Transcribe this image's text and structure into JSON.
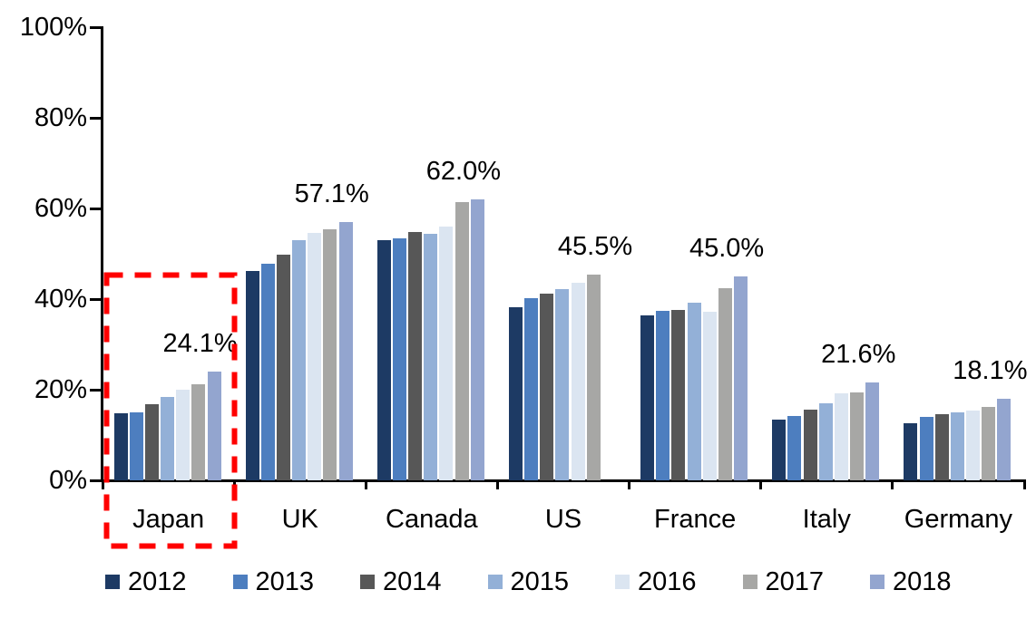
{
  "chart_data": {
    "type": "bar",
    "title": "",
    "xlabel": "",
    "ylabel": "",
    "ylim": [
      0,
      100
    ],
    "grid": false,
    "legend_position": "bottom",
    "y_tick_labels": [
      "100%",
      "80%",
      "60%",
      "40%",
      "20%",
      "0%"
    ],
    "categories": [
      "Japan",
      "UK",
      "Canada",
      "US",
      "France",
      "Italy",
      "Germany"
    ],
    "series": [
      {
        "name": "2012",
        "color": "#1D3A64",
        "values": [
          14.9,
          46.2,
          53.0,
          38.3,
          36.5,
          13.5,
          12.7
        ]
      },
      {
        "name": "2013",
        "color": "#4D7EBF",
        "values": [
          15.0,
          47.8,
          53.4,
          40.3,
          37.4,
          14.2,
          14.0
        ]
      },
      {
        "name": "2014",
        "color": "#575757",
        "values": [
          16.9,
          49.8,
          54.8,
          41.2,
          37.6,
          15.7,
          14.6
        ]
      },
      {
        "name": "2015",
        "color": "#93B0D7",
        "values": [
          18.4,
          53.0,
          54.4,
          42.3,
          39.2,
          17.1,
          15.1
        ]
      },
      {
        "name": "2016",
        "color": "#DBE5F1",
        "values": [
          20.1,
          54.7,
          56.0,
          43.7,
          37.2,
          19.2,
          15.5
        ]
      },
      {
        "name": "2017",
        "color": "#A7A7A5",
        "values": [
          21.2,
          55.5,
          61.5,
          45.5,
          42.4,
          19.4,
          16.3
        ]
      },
      {
        "name": "2018",
        "color": "#93A5CF",
        "values": [
          24.1,
          57.1,
          62.0,
          null,
          45.0,
          21.6,
          18.1
        ]
      }
    ],
    "data_labels": [
      "24.1%",
      "57.1%",
      "62.0%",
      "45.5%",
      "45.0%",
      "21.6%",
      "18.1%"
    ],
    "annotations": {
      "highlight_color": "#FF0000",
      "highlighted_category": "Japan",
      "highlight_style": "red-dashed-rectangle"
    }
  }
}
